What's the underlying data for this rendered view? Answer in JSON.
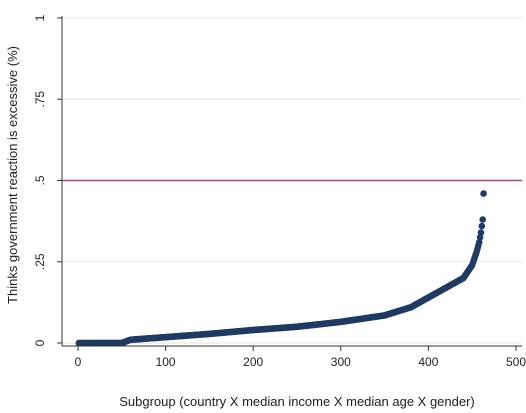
{
  "chart_data": {
    "type": "scatter",
    "title": "",
    "xlabel": "Subgroup (country X median income X median age X gender)",
    "ylabel": "Thinks government reaction is excessive (%)",
    "xlim": [
      0,
      500
    ],
    "ylim": [
      0,
      1
    ],
    "x_ticks": [
      0,
      100,
      200,
      300,
      400,
      500
    ],
    "x_tick_labels": [
      "0",
      "100",
      "200",
      "300",
      "400",
      "500"
    ],
    "y_ticks": [
      0,
      0.25,
      0.5,
      0.75,
      1
    ],
    "y_tick_labels": [
      "0",
      ".25",
      ".5",
      ".75",
      "1"
    ],
    "grid": true,
    "reference_line": {
      "axis": "y",
      "value": 0.5,
      "color": "#b0456a"
    },
    "marker_color": "#1f3a63",
    "n_points": 463,
    "x": [
      0,
      50,
      60,
      100,
      150,
      200,
      250,
      300,
      350,
      380,
      400,
      420,
      440,
      450,
      455,
      458,
      460,
      462,
      463
    ],
    "y": [
      0.0,
      0.0,
      0.01,
      0.018,
      0.028,
      0.04,
      0.05,
      0.065,
      0.085,
      0.11,
      0.14,
      0.17,
      0.2,
      0.24,
      0.28,
      0.31,
      0.34,
      0.38,
      0.46
    ]
  }
}
